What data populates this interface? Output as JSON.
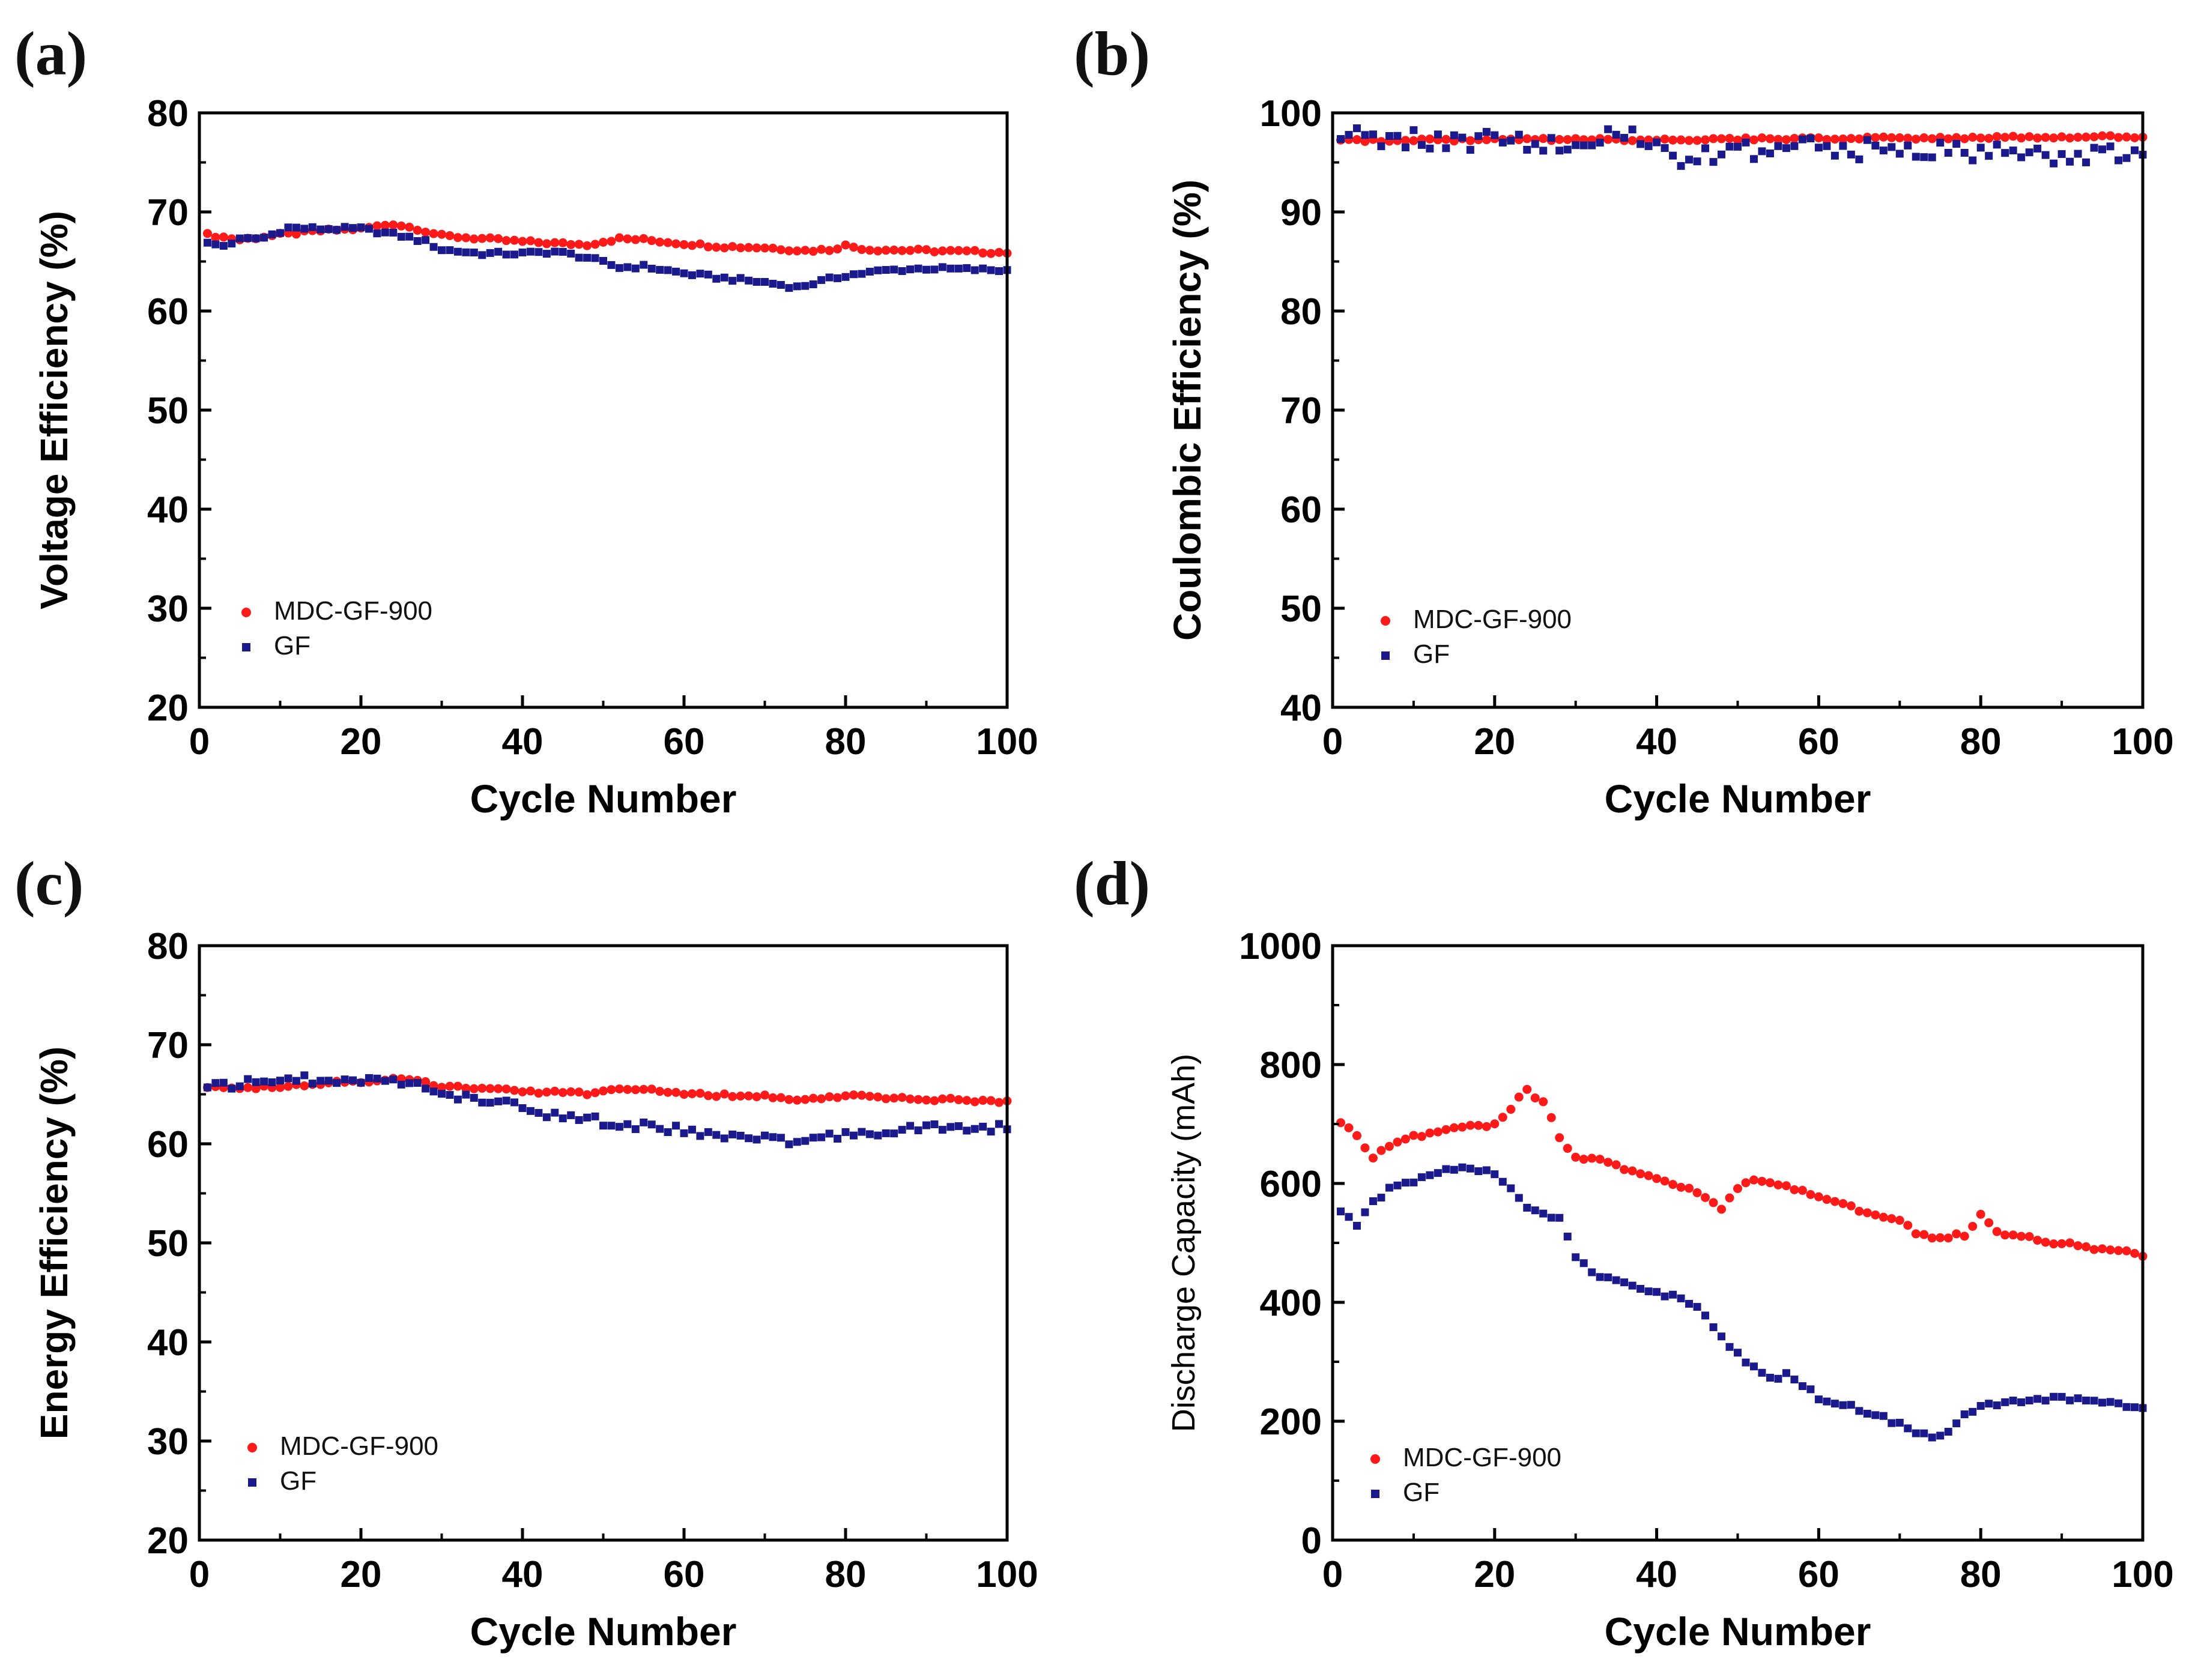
{
  "colors": {
    "mdc": "#ff1a1a",
    "gf": "#1a1a8c",
    "axis": "#000000"
  },
  "chart_data": [
    {
      "type": "scatter",
      "panel_label": "(a)",
      "title": "",
      "xlabel": "Cycle Number",
      "ylabel": "Voltage Efficiency (%)",
      "xlim": [
        0,
        100
      ],
      "ylim": [
        20,
        80
      ],
      "xticks": [
        0,
        20,
        40,
        60,
        80,
        100
      ],
      "yticks": [
        20,
        30,
        40,
        50,
        60,
        70,
        80
      ],
      "legend": "lower-left",
      "series": [
        {
          "name": "MDC-GF-900",
          "color": "#ff1a1a",
          "marker": "circle",
          "keypoints": [
            [
              1,
              67.7
            ],
            [
              5,
              67.2
            ],
            [
              10,
              67.7
            ],
            [
              15,
              68.1
            ],
            [
              20,
              68.3
            ],
            [
              24,
              68.8
            ],
            [
              27,
              68.3
            ],
            [
              30,
              67.6
            ],
            [
              35,
              67.3
            ],
            [
              40,
              67.0
            ],
            [
              45,
              66.8
            ],
            [
              48,
              66.7
            ],
            [
              52,
              67.3
            ],
            [
              55,
              67.2
            ],
            [
              60,
              66.8
            ],
            [
              65,
              66.5
            ],
            [
              70,
              66.4
            ],
            [
              75,
              66.1
            ],
            [
              78,
              66.2
            ],
            [
              80,
              66.6
            ],
            [
              83,
              66.2
            ],
            [
              90,
              66.1
            ],
            [
              100,
              65.9
            ]
          ]
        },
        {
          "name": "GF",
          "color": "#1a1a8c",
          "marker": "square",
          "keypoints": [
            [
              1,
              66.8
            ],
            [
              3,
              66.6
            ],
            [
              5,
              67.2
            ],
            [
              8,
              67.4
            ],
            [
              11,
              68.4
            ],
            [
              15,
              68.3
            ],
            [
              20,
              68.3
            ],
            [
              25,
              67.6
            ],
            [
              28,
              67.0
            ],
            [
              30,
              66.2
            ],
            [
              35,
              65.8
            ],
            [
              40,
              65.8
            ],
            [
              44,
              66.0
            ],
            [
              48,
              65.4
            ],
            [
              52,
              64.4
            ],
            [
              55,
              64.5
            ],
            [
              60,
              63.8
            ],
            [
              65,
              63.3
            ],
            [
              70,
              62.9
            ],
            [
              74,
              62.4
            ],
            [
              77,
              63.0
            ],
            [
              80,
              63.6
            ],
            [
              85,
              64.1
            ],
            [
              90,
              64.3
            ],
            [
              100,
              64.1
            ]
          ]
        }
      ]
    },
    {
      "type": "scatter",
      "panel_label": "(b)",
      "title": "",
      "xlabel": "Cycle Number",
      "ylabel": "Coulombic Efficiency (%)",
      "xlim": [
        0,
        100
      ],
      "ylim": [
        40,
        100
      ],
      "xticks": [
        0,
        20,
        40,
        60,
        80,
        100
      ],
      "yticks": [
        40,
        50,
        60,
        70,
        80,
        90,
        100
      ],
      "legend": "lower-left",
      "series": [
        {
          "name": "MDC-GF-900",
          "color": "#ff1a1a",
          "marker": "circle",
          "keypoints": [
            [
              1,
              97.2
            ],
            [
              20,
              97.3
            ],
            [
              40,
              97.3
            ],
            [
              60,
              97.4
            ],
            [
              80,
              97.5
            ],
            [
              100,
              97.6
            ]
          ]
        },
        {
          "name": "GF",
          "color": "#1a1a8c",
          "marker": "square",
          "keypoints": [
            [
              1,
              97.5
            ],
            [
              10,
              97.3
            ],
            [
              20,
              97.2
            ],
            [
              30,
              97.3
            ],
            [
              40,
              97.2
            ],
            [
              42,
              95.5
            ],
            [
              50,
              96.0
            ],
            [
              60,
              96.5
            ],
            [
              70,
              96.3
            ],
            [
              80,
              95.8
            ],
            [
              90,
              96.0
            ],
            [
              100,
              95.6
            ]
          ]
        }
      ]
    },
    {
      "type": "scatter",
      "panel_label": "(c)",
      "title": "",
      "xlabel": "Cycle Number",
      "ylabel": "Energy Efficiency (%)",
      "xlim": [
        0,
        100
      ],
      "ylim": [
        20,
        80
      ],
      "xticks": [
        0,
        20,
        40,
        60,
        80,
        100
      ],
      "yticks": [
        20,
        30,
        40,
        50,
        60,
        70,
        80
      ],
      "legend": "lower-left",
      "series": [
        {
          "name": "MDC-GF-900",
          "color": "#ff1a1a",
          "marker": "circle",
          "keypoints": [
            [
              1,
              65.8
            ],
            [
              5,
              65.5
            ],
            [
              10,
              65.8
            ],
            [
              15,
              66.1
            ],
            [
              20,
              66.3
            ],
            [
              24,
              66.6
            ],
            [
              27,
              66.3
            ],
            [
              30,
              65.8
            ],
            [
              40,
              65.3
            ],
            [
              48,
              65.1
            ],
            [
              52,
              65.6
            ],
            [
              55,
              65.5
            ],
            [
              60,
              65.0
            ],
            [
              70,
              64.8
            ],
            [
              75,
              64.4
            ],
            [
              80,
              64.9
            ],
            [
              85,
              64.6
            ],
            [
              100,
              64.3
            ]
          ]
        },
        {
          "name": "GF",
          "color": "#1a1a8c",
          "marker": "square",
          "keypoints": [
            [
              1,
              65.7
            ],
            [
              5,
              66.0
            ],
            [
              10,
              66.5
            ],
            [
              15,
              66.5
            ],
            [
              20,
              66.6
            ],
            [
              25,
              66.3
            ],
            [
              30,
              65.0
            ],
            [
              35,
              64.3
            ],
            [
              40,
              64.0
            ],
            [
              42,
              63.0
            ],
            [
              48,
              62.6
            ],
            [
              52,
              61.8
            ],
            [
              55,
              61.9
            ],
            [
              60,
              61.3
            ],
            [
              65,
              60.8
            ],
            [
              70,
              60.6
            ],
            [
              74,
              60.2
            ],
            [
              78,
              60.7
            ],
            [
              82,
              61.1
            ],
            [
              90,
              61.6
            ],
            [
              100,
              61.6
            ]
          ]
        }
      ]
    },
    {
      "type": "scatter",
      "panel_label": "(d)",
      "title": "",
      "xlabel": "Cycle Number",
      "ylabel": "Discharge Capacity (mAh)",
      "xlim": [
        0,
        100
      ],
      "ylim": [
        0,
        1000
      ],
      "xticks": [
        0,
        20,
        40,
        60,
        80,
        100
      ],
      "yticks": [
        0,
        200,
        400,
        600,
        800,
        1000
      ],
      "legend": "lower-left",
      "series": [
        {
          "name": "MDC-GF-900",
          "color": "#ff1a1a",
          "marker": "circle",
          "keypoints": [
            [
              1,
              700
            ],
            [
              3,
              680
            ],
            [
              5,
              645
            ],
            [
              7,
              665
            ],
            [
              10,
              680
            ],
            [
              15,
              695
            ],
            [
              20,
              700
            ],
            [
              22,
              725
            ],
            [
              24,
              760
            ],
            [
              26,
              735
            ],
            [
              28,
              680
            ],
            [
              30,
              645
            ],
            [
              33,
              640
            ],
            [
              36,
              625
            ],
            [
              40,
              605
            ],
            [
              44,
              590
            ],
            [
              48,
              560
            ],
            [
              50,
              590
            ],
            [
              52,
              605
            ],
            [
              56,
              595
            ],
            [
              60,
              575
            ],
            [
              65,
              555
            ],
            [
              70,
              540
            ],
            [
              72,
              515
            ],
            [
              75,
              510
            ],
            [
              78,
              515
            ],
            [
              80,
              545
            ],
            [
              82,
              520
            ],
            [
              85,
              510
            ],
            [
              90,
              500
            ],
            [
              95,
              490
            ],
            [
              100,
              480
            ]
          ]
        },
        {
          "name": "GF",
          "color": "#1a1a8c",
          "marker": "square",
          "keypoints": [
            [
              1,
              555
            ],
            [
              3,
              530
            ],
            [
              5,
              570
            ],
            [
              7,
              590
            ],
            [
              10,
              605
            ],
            [
              13,
              620
            ],
            [
              17,
              625
            ],
            [
              20,
              615
            ],
            [
              22,
              595
            ],
            [
              24,
              560
            ],
            [
              26,
              550
            ],
            [
              28,
              540
            ],
            [
              30,
              475
            ],
            [
              32,
              450
            ],
            [
              35,
              435
            ],
            [
              38,
              425
            ],
            [
              42,
              410
            ],
            [
              45,
              395
            ],
            [
              48,
              340
            ],
            [
              51,
              300
            ],
            [
              54,
              270
            ],
            [
              56,
              280
            ],
            [
              58,
              260
            ],
            [
              60,
              240
            ],
            [
              65,
              220
            ],
            [
              70,
              195
            ],
            [
              74,
              170
            ],
            [
              76,
              185
            ],
            [
              78,
              215
            ],
            [
              82,
              230
            ],
            [
              86,
              235
            ],
            [
              90,
              240
            ],
            [
              95,
              235
            ],
            [
              100,
              220
            ]
          ]
        }
      ]
    }
  ]
}
